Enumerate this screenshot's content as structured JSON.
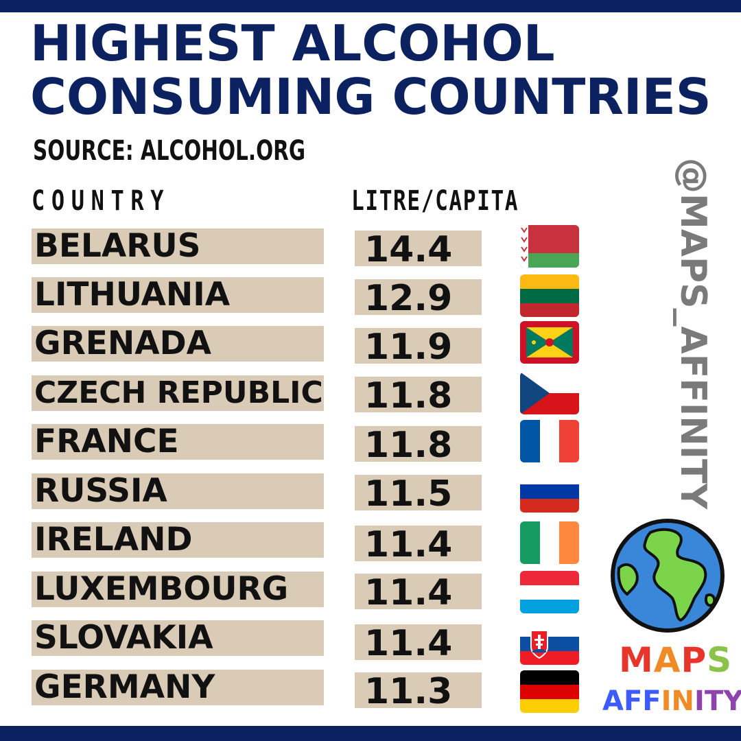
{
  "title": "HIGHEST ALCOHOL\nCONSUMING COUNTRIES",
  "source": "SOURCE: ALCOHOL.ORG",
  "handle": "@MAPS_AFFINITY",
  "logo": {
    "line1": "MAPS",
    "line2": "AFFINITY"
  },
  "colors": {
    "navy": "#0c2160",
    "row_bg": "#d9cbb5",
    "text": "#111111"
  },
  "chart_data": {
    "type": "table",
    "columns": [
      "COUNTRY",
      "LITRE/CAPITA"
    ],
    "rows": [
      {
        "country": "BELARUS",
        "value": "14.4",
        "flag": "belarus-flag-icon"
      },
      {
        "country": "LITHUANIA",
        "value": "12.9",
        "flag": "lithuania-flag-icon"
      },
      {
        "country": "GRENADA",
        "value": "11.9",
        "flag": "grenada-flag-icon"
      },
      {
        "country": "CZECH REPUBLIC",
        "value": "11.8",
        "flag": "czech-republic-flag-icon"
      },
      {
        "country": "FRANCE",
        "value": "11.8",
        "flag": "france-flag-icon"
      },
      {
        "country": "RUSSIA",
        "value": "11.5",
        "flag": "russia-flag-icon"
      },
      {
        "country": "IRELAND",
        "value": "11.4",
        "flag": "ireland-flag-icon"
      },
      {
        "country": "LUXEMBOURG",
        "value": "11.4",
        "flag": "luxembourg-flag-icon"
      },
      {
        "country": "SLOVAKIA",
        "value": "11.4",
        "flag": "slovakia-flag-icon"
      },
      {
        "country": "GERMANY",
        "value": "11.3",
        "flag": "germany-flag-icon"
      }
    ]
  }
}
